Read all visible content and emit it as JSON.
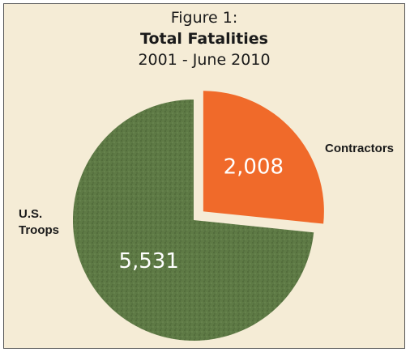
{
  "chart_data": {
    "type": "pie",
    "title_lines": [
      "Figure 1:",
      "Total Fatalities",
      "2001 - June 2010"
    ],
    "slices": [
      {
        "label": "Contractors",
        "value": 2008,
        "value_label": "2,008",
        "color": "#f06a2a",
        "exploded": true
      },
      {
        "label_lines": [
          "U.S.",
          "Troops"
        ],
        "value": 5531,
        "value_label": "5,531",
        "color": "#5e7a45",
        "exploded": false
      }
    ],
    "background": "#f5ecd6"
  }
}
